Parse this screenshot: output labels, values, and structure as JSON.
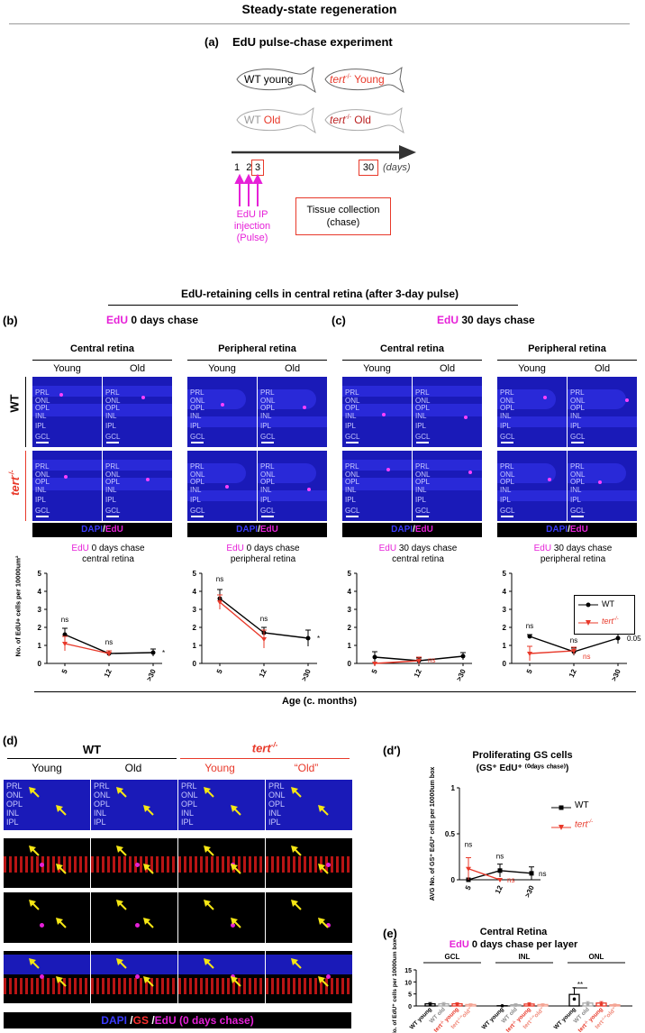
{
  "header": {
    "title": "Steady-state regeneration"
  },
  "panel_a": {
    "letter": "(a)",
    "title": "EdU pulse-chase experiment",
    "fish": [
      {
        "label_prefix": "WT",
        "label_suffix": " young",
        "prefix_red": false,
        "suffix_red": false,
        "faded": false
      },
      {
        "label_prefix": "tert",
        "sup": "-/-",
        "label_suffix": " Young",
        "prefix_red": true,
        "suffix_red": true,
        "faded": false
      },
      {
        "label_prefix": "WT",
        "label_suffix": " Old",
        "prefix_red": false,
        "suffix_red": true,
        "faded": true
      },
      {
        "label_prefix": "tert",
        "sup": "-/-",
        "label_suffix": " Old",
        "prefix_red": true,
        "suffix_red": true,
        "faded": true
      }
    ],
    "timeline": {
      "ticks": [
        "1",
        "2",
        "3"
      ],
      "end_tick": "30",
      "unit": "(days)"
    },
    "pulse_label": "EdU IP injection (Pulse)",
    "pulse_lines": [
      "EdU IP",
      "injection",
      "(Pulse)"
    ],
    "chase_box_lines": [
      "Tissue collection",
      "(chase)"
    ]
  },
  "section_title": "EdU-retaining cells in central retina (after 3-day pulse)",
  "panel_b": {
    "letter": "(b)",
    "title_edu": "EdU",
    "title_rest": " 0 days chase"
  },
  "panel_c": {
    "letter": "(c)",
    "title_edu": "EdU",
    "title_rest": " 30 days chase"
  },
  "image_groups": [
    {
      "title": "Central retina",
      "young": "Young",
      "old": "Old"
    },
    {
      "title": "Peripheral retina",
      "young": "Young",
      "old": "Old"
    },
    {
      "title": "Central retina",
      "young": "Young",
      "old": "Old"
    },
    {
      "title": "Peripheral retina",
      "young": "Young",
      "old": "Old"
    }
  ],
  "row_labels": {
    "wt": "WT",
    "tert": "tert",
    "tert_sup": "-/-"
  },
  "layers_central": [
    "PRL",
    "ONL",
    "OPL",
    "INL",
    "IPL",
    "GCL"
  ],
  "stain_label": {
    "dapi": "DAPI",
    "sep": "/",
    "edu": "EdU"
  },
  "legend": {
    "wt": "WT",
    "tert": "tert",
    "tert_sup": "-/-"
  },
  "x_axis_title": "Age (c. months)",
  "y_axis_title_b": "No. of EdU+ cells per 10000um²",
  "chart_data": [
    {
      "type": "line",
      "title_edu": "EdU",
      "title_rest": " 0 days chase",
      "subtitle": "central retina",
      "categories": [
        "5",
        "12",
        ">30"
      ],
      "ylim": [
        0,
        5
      ],
      "yticks": [
        "0",
        "1",
        "2",
        "3",
        "4",
        "5"
      ],
      "ylabel": "No. of EdU+ cells per 10000um²",
      "series": [
        {
          "name": "WT",
          "values": [
            1.6,
            0.55,
            0.6
          ],
          "err": [
            0.35,
            0.15,
            0.2
          ],
          "color": "#000000"
        },
        {
          "name": "tert-/-",
          "values": [
            1.1,
            0.55,
            null
          ],
          "err": [
            0.4,
            0.15,
            null
          ],
          "color": "#e8392a"
        }
      ],
      "annotations": [
        {
          "cat": 0,
          "text": "ns",
          "y": 2.2
        },
        {
          "cat": 1,
          "text": "ns",
          "y": 0.95
        },
        {
          "cat": 2,
          "text": "*",
          "y": 0.6,
          "side": true
        }
      ]
    },
    {
      "type": "line",
      "title_edu": "EdU",
      "title_rest": " 0 days chase",
      "subtitle": "peripheral retina",
      "categories": [
        "5",
        "12",
        ">30"
      ],
      "ylim": [
        0,
        5
      ],
      "yticks": [
        "0",
        "1",
        "2",
        "3",
        "4",
        "5"
      ],
      "series": [
        {
          "name": "WT",
          "values": [
            3.6,
            1.7,
            1.4
          ],
          "err": [
            0.5,
            0.3,
            0.45
          ],
          "color": "#000000"
        },
        {
          "name": "tert-/-",
          "values": [
            3.4,
            1.35,
            null
          ],
          "err": [
            0.4,
            0.5,
            null
          ],
          "color": "#e8392a"
        }
      ],
      "annotations": [
        {
          "cat": 0,
          "text": "ns",
          "y": 4.45
        },
        {
          "cat": 1,
          "text": "ns",
          "y": 2.25
        },
        {
          "cat": 2,
          "text": "*",
          "y": 1.4,
          "side": true
        }
      ]
    },
    {
      "type": "line",
      "title_edu": "EdU",
      "title_rest": " 30 days chase",
      "subtitle": "central retina",
      "categories": [
        "5",
        "12",
        ">30"
      ],
      "ylim": [
        0,
        5
      ],
      "yticks": [
        "0",
        "1",
        "2",
        "3",
        "4",
        "5"
      ],
      "series": [
        {
          "name": "WT",
          "values": [
            0.35,
            0.15,
            0.4
          ],
          "err": [
            0.3,
            0.15,
            0.2
          ],
          "color": "#000000"
        },
        {
          "name": "tert-/-",
          "values": [
            0.0,
            0.15,
            null
          ],
          "err": [
            0.0,
            0.2,
            null
          ],
          "color": "#e8392a"
        }
      ],
      "annotations": [
        {
          "cat": 1,
          "text": "ns",
          "y": 0.2,
          "side": true,
          "red": true
        }
      ]
    },
    {
      "type": "line",
      "title_edu": "EdU",
      "title_rest": " 30 days chase",
      "subtitle": "peripheral retina",
      "categories": [
        "5",
        "12",
        ">30"
      ],
      "ylim": [
        0,
        5
      ],
      "yticks": [
        "0",
        "1",
        "2",
        "3",
        "4",
        "5"
      ],
      "series": [
        {
          "name": "WT",
          "values": [
            1.5,
            0.65,
            1.4
          ],
          "err": [
            0.1,
            0.2,
            0.3
          ],
          "color": "#000000"
        },
        {
          "name": "tert-/-",
          "values": [
            0.55,
            0.7,
            null
          ],
          "err": [
            0.4,
            0.2,
            null
          ],
          "color": "#e8392a"
        }
      ],
      "annotations": [
        {
          "cat": 0,
          "text": "ns",
          "y": 1.85
        },
        {
          "cat": 1,
          "text": "ns",
          "y": 1.05
        },
        {
          "cat": 1,
          "text": "ns",
          "y": 0.4,
          "side": true,
          "red": true
        },
        {
          "cat": 2,
          "text": "0.05",
          "y": 1.4,
          "side": true
        }
      ]
    },
    {
      "type": "line",
      "title": "Proliferating GS cells",
      "subtitle": "(GS⁺ EdU⁺ ⁽⁰ᵈᵃʸˢ ᶜʰᵃˢᵉ⁾)",
      "categories": [
        "5",
        "12",
        ">30"
      ],
      "ylim": [
        0,
        1
      ],
      "yticks": [
        "0",
        "0.5",
        "1"
      ],
      "ylabel": "AVG No. of GS⁺ EdU⁺ cells per 10000um box",
      "series": [
        {
          "name": "WT",
          "values": [
            0.0,
            0.1,
            0.07
          ],
          "err": [
            0.0,
            0.07,
            0.07
          ],
          "color": "#000000"
        },
        {
          "name": "tert-/-",
          "values": [
            0.12,
            0.0,
            null
          ],
          "err": [
            0.12,
            0.0,
            null
          ],
          "color": "#e8392a"
        }
      ],
      "annotations": [
        {
          "cat": 0,
          "text": "ns",
          "y": 0.33
        },
        {
          "cat": 1,
          "text": "ns",
          "y": 0.2
        },
        {
          "cat": 1,
          "text": "ns",
          "y": 0.0,
          "side": true,
          "red": true
        },
        {
          "cat": 2,
          "text": "ns",
          "y": 0.07,
          "side": true
        }
      ]
    },
    {
      "type": "bar",
      "title": "Central Retina",
      "subtitle_edu": "EdU",
      "subtitle_rest": " 0 days chase per layer",
      "groups": [
        "GCL",
        "INL",
        "ONL"
      ],
      "categories": [
        "WT young",
        "WT old",
        "tert-/- young",
        "tert-/- \"old\""
      ],
      "category_labels": [
        {
          "pre": "WT young",
          "sup": "",
          "post": "",
          "color": "#000000"
        },
        {
          "pre": "WT old",
          "sup": "",
          "post": "",
          "color": "#888888"
        },
        {
          "pre": "tert",
          "sup": "-/-",
          "post": " young",
          "color": "#e8392a"
        },
        {
          "pre": "tert",
          "sup": "-/-",
          "post": "\"old\"",
          "color": "#f08878"
        }
      ],
      "ylim": [
        0,
        15
      ],
      "yticks": [
        "0",
        "5",
        "10",
        "15"
      ],
      "ylabel": "No. of EdU⁺ cells per 10000um box",
      "series": [
        {
          "name": "GCL",
          "values": [
            0.9,
            0.9,
            0.9,
            0.6
          ],
          "err": [
            0.5,
            0.5,
            0.4,
            0.3
          ]
        },
        {
          "name": "INL",
          "values": [
            0.1,
            0.5,
            0.8,
            0.6
          ],
          "err": [
            0.1,
            0.4,
            0.5,
            0.3
          ]
        },
        {
          "name": "ONL",
          "values": [
            4.8,
            1.2,
            1.2,
            0.5
          ],
          "err": [
            2.8,
            0.6,
            0.6,
            0.3
          ]
        }
      ],
      "colors": [
        "#000000",
        "#aaaaaa",
        "#e8392a",
        "#f4a494"
      ],
      "annotations": [
        {
          "group": 2,
          "text": "**",
          "y": 7.5
        }
      ]
    }
  ],
  "panel_d": {
    "letter": "(d)",
    "wt": "WT",
    "tert": "tert",
    "tert_sup": "-/-",
    "cols": [
      "Young",
      "Old",
      "Young",
      "“Old”"
    ],
    "layers": [
      "PRL",
      "ONL",
      "OPL",
      "INL",
      "IPL"
    ],
    "stain": {
      "dapi": "DAPI",
      "gs": "GS",
      "edu": "EdU (0 days chase)"
    }
  },
  "panel_d2": {
    "letter": "(d′)"
  },
  "panel_e": {
    "letter": "(e)"
  },
  "colors": {
    "red": "#e8392a",
    "magenta": "#e620d8",
    "blue": "#1a1ab8",
    "yellow": "#f5e614"
  }
}
